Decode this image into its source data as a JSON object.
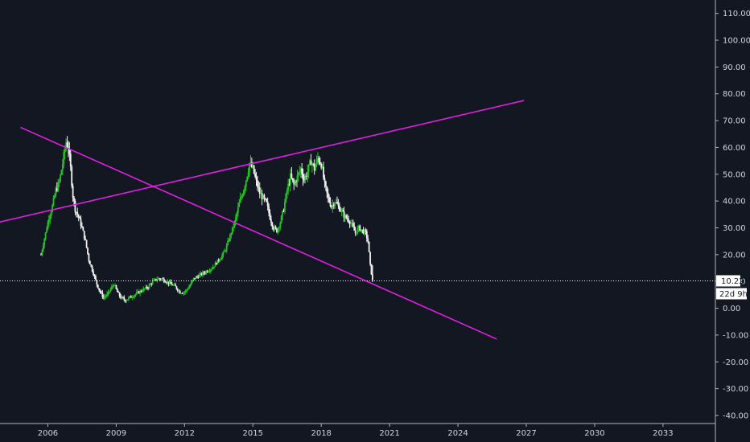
{
  "chart_data": {
    "type": "candlestick",
    "title": "",
    "xlabel": "",
    "ylabel": "",
    "x_ticks": [
      "2006",
      "2009",
      "2012",
      "2015",
      "2018",
      "2021",
      "2024",
      "2027",
      "2030",
      "2033"
    ],
    "y_ticks": [
      "110.00",
      "100.00",
      "90.00",
      "80.00",
      "70.00",
      "60.00",
      "50.00",
      "40.00",
      "30.00",
      "20.00",
      "10.00",
      "0.00",
      "-10.00",
      "-20.00",
      "-30.00",
      "-40.00"
    ],
    "ylim": [
      -43,
      115
    ],
    "xlim": [
      2003.9,
      2035.3
    ],
    "grid": false,
    "last_price": "10.22",
    "countdown": "22d 9h",
    "price_series": [
      [
        2005.7,
        20
      ],
      [
        2005.9,
        28
      ],
      [
        2006.05,
        34
      ],
      [
        2006.2,
        38
      ],
      [
        2006.35,
        44
      ],
      [
        2006.5,
        47
      ],
      [
        2006.65,
        54
      ],
      [
        2006.8,
        62
      ],
      [
        2006.9,
        60
      ],
      [
        2007.0,
        52
      ],
      [
        2007.1,
        42
      ],
      [
        2007.2,
        37
      ],
      [
        2007.35,
        34
      ],
      [
        2007.5,
        30
      ],
      [
        2007.65,
        25
      ],
      [
        2007.8,
        18
      ],
      [
        2008.0,
        13
      ],
      [
        2008.15,
        9
      ],
      [
        2008.3,
        6
      ],
      [
        2008.45,
        4
      ],
      [
        2008.6,
        5
      ],
      [
        2008.75,
        7
      ],
      [
        2008.9,
        9
      ],
      [
        2009.05,
        6
      ],
      [
        2009.2,
        4
      ],
      [
        2009.4,
        3
      ],
      [
        2009.6,
        4
      ],
      [
        2009.8,
        5
      ],
      [
        2010.0,
        6
      ],
      [
        2010.2,
        7
      ],
      [
        2010.4,
        8
      ],
      [
        2010.6,
        10
      ],
      [
        2010.8,
        11
      ],
      [
        2011.0,
        11
      ],
      [
        2011.2,
        10
      ],
      [
        2011.4,
        9
      ],
      [
        2011.6,
        8
      ],
      [
        2011.8,
        6
      ],
      [
        2012.0,
        6
      ],
      [
        2012.2,
        8
      ],
      [
        2012.4,
        11
      ],
      [
        2012.6,
        12
      ],
      [
        2012.8,
        13
      ],
      [
        2013.0,
        14
      ],
      [
        2013.2,
        15
      ],
      [
        2013.4,
        17
      ],
      [
        2013.6,
        19
      ],
      [
        2013.8,
        22
      ],
      [
        2014.0,
        27
      ],
      [
        2014.2,
        32
      ],
      [
        2014.4,
        39
      ],
      [
        2014.55,
        43
      ],
      [
        2014.7,
        48
      ],
      [
        2014.85,
        54
      ],
      [
        2015.0,
        52
      ],
      [
        2015.15,
        47
      ],
      [
        2015.3,
        43
      ],
      [
        2015.45,
        41
      ],
      [
        2015.6,
        39
      ],
      [
        2015.75,
        34
      ],
      [
        2015.9,
        30
      ],
      [
        2016.05,
        29
      ],
      [
        2016.2,
        32
      ],
      [
        2016.35,
        37
      ],
      [
        2016.5,
        44
      ],
      [
        2016.65,
        49
      ],
      [
        2016.8,
        46
      ],
      [
        2016.95,
        49
      ],
      [
        2017.1,
        52
      ],
      [
        2017.25,
        48
      ],
      [
        2017.4,
        51
      ],
      [
        2017.55,
        55
      ],
      [
        2017.7,
        52
      ],
      [
        2017.85,
        56
      ],
      [
        2018.0,
        54
      ],
      [
        2018.15,
        46
      ],
      [
        2018.3,
        41
      ],
      [
        2018.45,
        38
      ],
      [
        2018.6,
        40
      ],
      [
        2018.75,
        38
      ],
      [
        2018.9,
        36
      ],
      [
        2019.05,
        34
      ],
      [
        2019.2,
        33
      ],
      [
        2019.35,
        31
      ],
      [
        2019.5,
        28
      ],
      [
        2019.65,
        30
      ],
      [
        2019.8,
        29
      ],
      [
        2019.95,
        28
      ],
      [
        2020.05,
        25
      ],
      [
        2020.15,
        16
      ],
      [
        2020.25,
        10.22
      ]
    ],
    "trendlines": [
      {
        "from": [
          2003.8,
          32
        ],
        "to": [
          2026.9,
          77.5
        ]
      },
      {
        "from": [
          2004.8,
          67.5
        ],
        "to": [
          2025.7,
          -11.5
        ]
      },
      {
        "from": [
          2003.9,
          10.22
        ],
        "to": [
          2035.3,
          10.22
        ],
        "style": "dotted"
      }
    ],
    "colors": {
      "background": "#131722",
      "up": "#26c226",
      "down": "#f0f0f0",
      "trendline": "#e020e0",
      "axis": "#b2b5be",
      "text": "#d1d4dc",
      "tag_bg": "#ffffff"
    }
  }
}
